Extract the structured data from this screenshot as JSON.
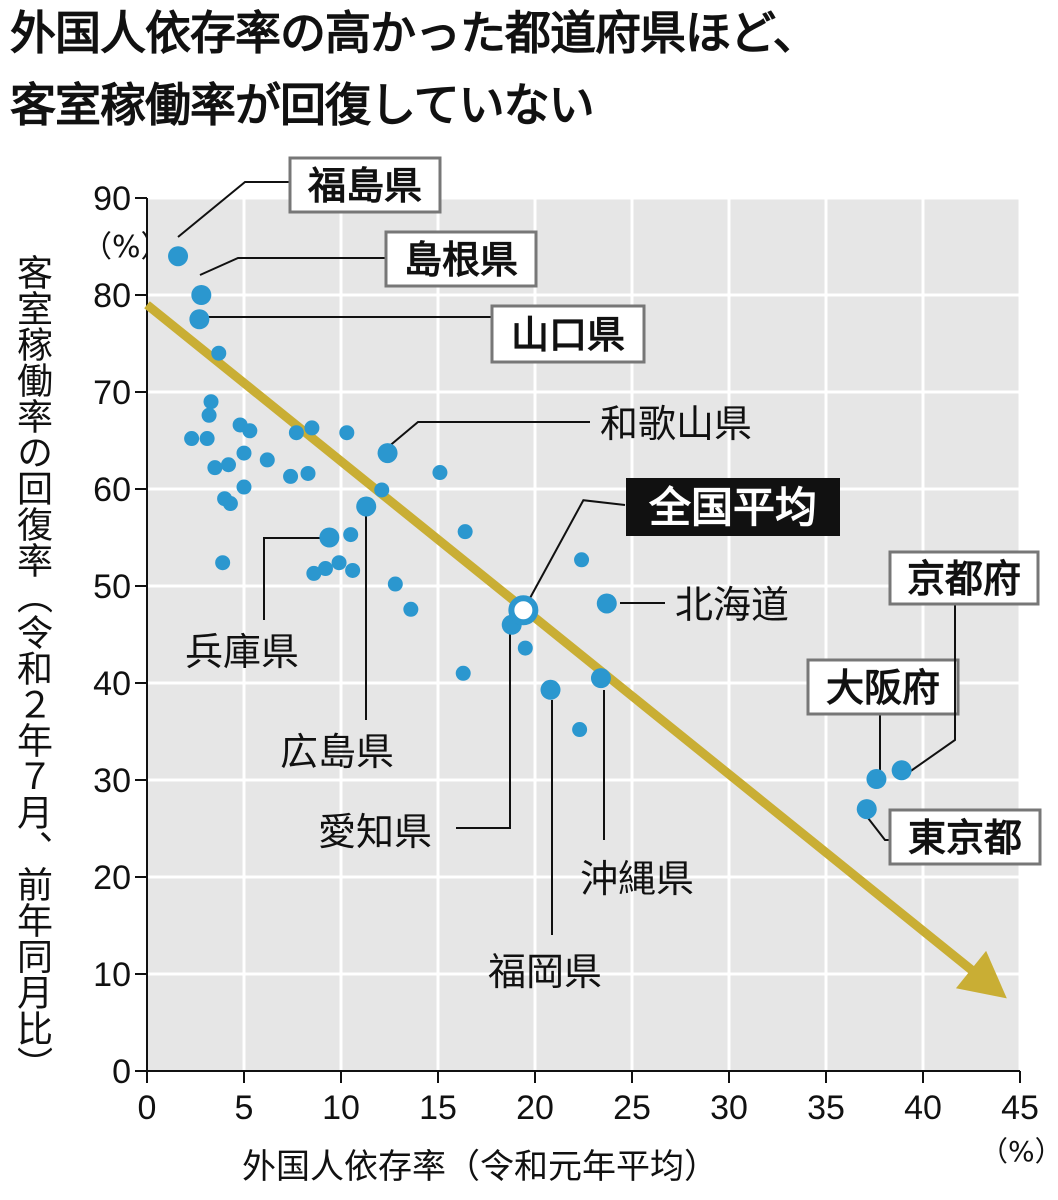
{
  "title_lines": [
    "外国人依存率の高かった都道府県ほど、",
    "客室稼働率が回復していない"
  ],
  "colors": {
    "plot_bg": "#e6e6e6",
    "grid": "#ffffff",
    "dot": "#2b97cf",
    "trend": "#c9ae34",
    "label_border": "#777777"
  },
  "chart_data": {
    "type": "scatter",
    "title": "外国人依存率の高かった都道府県ほど、客室稼働率が回復していない",
    "xlabel": "外国人依存率（令和元年平均）",
    "ylabel": "客室稼働率の回復率（令和２年７月、前年同月比）",
    "x_unit": "（%）",
    "y_unit": "（%）",
    "xlim": [
      0,
      45
    ],
    "ylim": [
      0,
      90
    ],
    "x_ticks": [
      "0",
      "5",
      "10",
      "15",
      "20",
      "25",
      "30",
      "35",
      "40",
      "45"
    ],
    "y_ticks": [
      "0",
      "10",
      "20",
      "30",
      "40",
      "50",
      "60",
      "70",
      "80",
      "90"
    ],
    "grid": true,
    "trend_line": {
      "from": [
        0,
        79
      ],
      "to": [
        44,
        8
      ]
    },
    "national_average": {
      "label": "全国平均",
      "x": 19.4,
      "y": 47.5
    },
    "labeled_points": [
      {
        "label": "福島県",
        "x": 1.6,
        "y": 84.0,
        "boxed": true
      },
      {
        "label": "島根県",
        "x": 2.8,
        "y": 80.0,
        "boxed": true
      },
      {
        "label": "山口県",
        "x": 2.7,
        "y": 77.5,
        "boxed": true
      },
      {
        "label": "和歌山県",
        "x": 12.4,
        "y": 63.7,
        "boxed": false
      },
      {
        "label": "兵庫県",
        "x": 9.4,
        "y": 55.0,
        "boxed": false
      },
      {
        "label": "広島県",
        "x": 11.3,
        "y": 58.2,
        "boxed": false
      },
      {
        "label": "北海道",
        "x": 23.7,
        "y": 48.2,
        "boxed": false
      },
      {
        "label": "愛知県",
        "x": 18.8,
        "y": 46.0,
        "boxed": false
      },
      {
        "label": "福岡県",
        "x": 20.8,
        "y": 39.3,
        "boxed": false
      },
      {
        "label": "沖縄県",
        "x": 23.4,
        "y": 40.5,
        "boxed": false
      },
      {
        "label": "大阪府",
        "x": 37.6,
        "y": 30.1,
        "boxed": true
      },
      {
        "label": "京都府",
        "x": 38.9,
        "y": 31.0,
        "boxed": true
      },
      {
        "label": "東京都",
        "x": 37.1,
        "y": 27.0,
        "boxed": true
      }
    ],
    "other_points": [
      [
        3.7,
        74.0
      ],
      [
        3.3,
        69.0
      ],
      [
        3.2,
        67.6
      ],
      [
        2.3,
        65.2
      ],
      [
        3.1,
        65.2
      ],
      [
        4.8,
        66.6
      ],
      [
        5.3,
        66.0
      ],
      [
        5.0,
        63.7
      ],
      [
        4.2,
        62.5
      ],
      [
        3.5,
        62.2
      ],
      [
        6.2,
        63.0
      ],
      [
        7.7,
        65.8
      ],
      [
        8.5,
        66.3
      ],
      [
        10.3,
        65.8
      ],
      [
        7.4,
        61.3
      ],
      [
        8.3,
        61.6
      ],
      [
        5.0,
        60.2
      ],
      [
        4.0,
        59.0
      ],
      [
        4.3,
        58.5
      ],
      [
        12.1,
        59.9
      ],
      [
        15.1,
        61.7
      ],
      [
        16.4,
        55.6
      ],
      [
        10.5,
        55.3
      ],
      [
        3.9,
        52.4
      ],
      [
        9.2,
        51.8
      ],
      [
        8.6,
        51.3
      ],
      [
        9.9,
        52.4
      ],
      [
        10.6,
        51.6
      ],
      [
        12.8,
        50.2
      ],
      [
        13.6,
        47.6
      ],
      [
        16.3,
        41.0
      ],
      [
        19.5,
        43.6
      ],
      [
        22.4,
        52.7
      ],
      [
        22.3,
        35.2
      ]
    ]
  }
}
